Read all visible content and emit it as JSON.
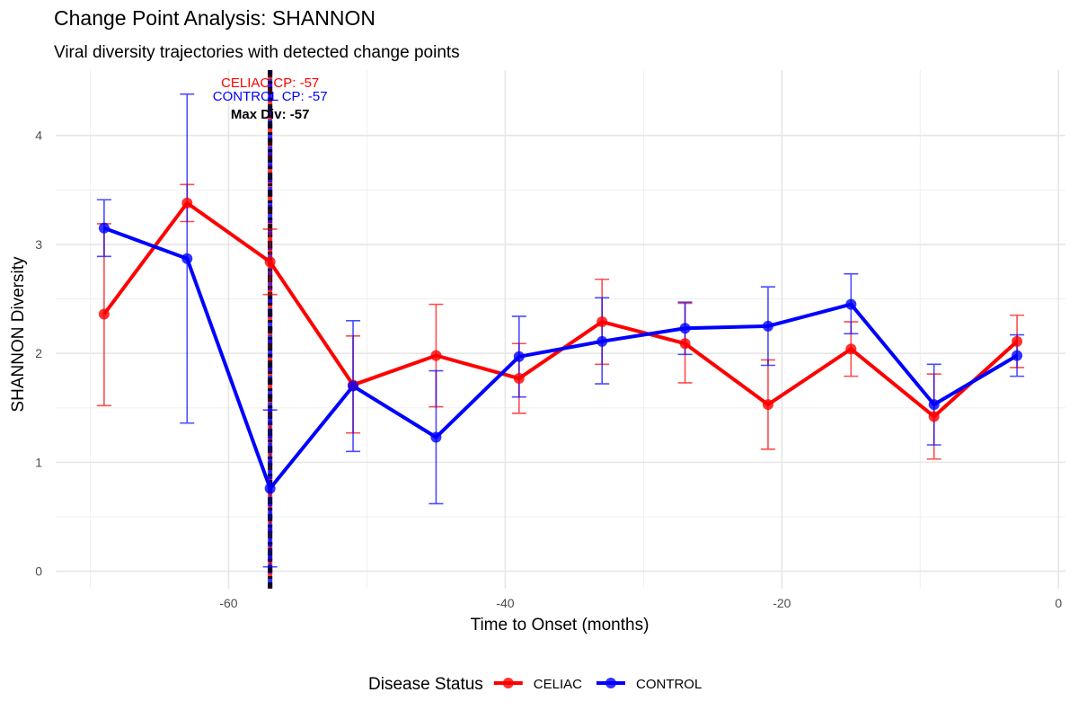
{
  "chart_data": {
    "type": "line",
    "title": "Change Point Analysis: SHANNON",
    "subtitle": "Viral diversity trajectories with detected change points",
    "xlabel": "Time to Onset (months)",
    "ylabel": "SHANNON Diversity",
    "xlim": [
      -72.5,
      0.5
    ],
    "ylim": [
      -0.16,
      4.6
    ],
    "x_ticks": [
      -60,
      -40,
      -20,
      0
    ],
    "y_ticks": [
      0,
      1,
      2,
      3,
      4
    ],
    "grid": true,
    "legend_title": "Disease Status",
    "legend_position": "bottom",
    "series": [
      {
        "name": "CELIAC",
        "color": "#ff0000",
        "x": [
          -69,
          -63,
          -57,
          -51,
          -45,
          -39,
          -33,
          -27,
          -21,
          -15,
          -9,
          -3
        ],
        "values": [
          2.36,
          3.38,
          2.84,
          1.71,
          1.98,
          1.77,
          2.29,
          2.09,
          1.53,
          2.04,
          1.42,
          2.11
        ],
        "err_low": [
          1.52,
          3.21,
          2.54,
          1.27,
          1.51,
          1.45,
          1.9,
          1.73,
          1.12,
          1.79,
          1.03,
          1.87
        ],
        "err_high": [
          3.19,
          3.55,
          3.14,
          2.16,
          2.45,
          2.09,
          2.68,
          2.46,
          1.94,
          2.29,
          1.81,
          2.35
        ]
      },
      {
        "name": "CONTROL",
        "color": "#0000ff",
        "x": [
          -69,
          -63,
          -57,
          -51,
          -45,
          -39,
          -33,
          -27,
          -21,
          -15,
          -9,
          -3
        ],
        "values": [
          3.15,
          2.87,
          0.76,
          1.7,
          1.23,
          1.97,
          2.11,
          2.23,
          2.25,
          2.45,
          1.53,
          1.98
        ],
        "err_low": [
          2.89,
          1.36,
          0.04,
          1.1,
          0.62,
          1.6,
          1.72,
          1.99,
          1.89,
          2.18,
          1.16,
          1.79
        ],
        "err_high": [
          3.41,
          4.38,
          1.48,
          2.3,
          1.84,
          2.34,
          2.51,
          2.47,
          2.61,
          2.73,
          1.9,
          2.17
        ]
      }
    ],
    "change_points": [
      {
        "label": "CELIAC CP: -57",
        "x": -57,
        "color": "#ff0000"
      },
      {
        "label": "CONTROL CP: -57",
        "x": -57,
        "color": "#0000ff"
      },
      {
        "label": "Max Div: -57",
        "x": -57,
        "color": "#000000"
      }
    ]
  }
}
